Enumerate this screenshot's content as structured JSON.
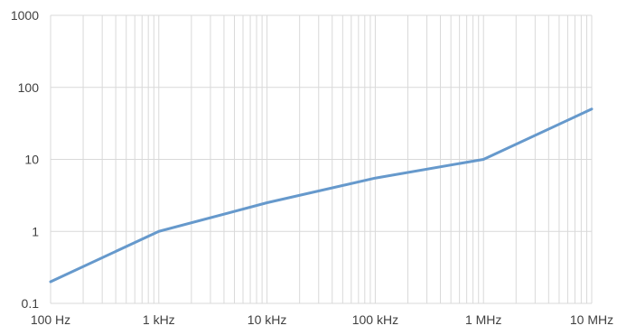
{
  "chart_data": {
    "type": "line",
    "title": "",
    "xlabel": "",
    "ylabel": "",
    "x_scale": "log",
    "y_scale": "log",
    "xlim": [
      100,
      10000000
    ],
    "ylim": [
      0.1,
      1000
    ],
    "grid": true,
    "legend": "none",
    "x_ticks": [
      {
        "value": 100,
        "label": "100 Hz"
      },
      {
        "value": 1000,
        "label": "1 kHz"
      },
      {
        "value": 10000,
        "label": "10 kHz"
      },
      {
        "value": 100000,
        "label": "100 kHz"
      },
      {
        "value": 1000000,
        "label": "1 MHz"
      },
      {
        "value": 10000000,
        "label": "10 MHz"
      }
    ],
    "y_ticks": [
      {
        "value": 0.1,
        "label": "0.1"
      },
      {
        "value": 1,
        "label": "1"
      },
      {
        "value": 10,
        "label": "10"
      },
      {
        "value": 100,
        "label": "100"
      },
      {
        "value": 1000,
        "label": "1000"
      }
    ],
    "series": [
      {
        "color": "#6699cc",
        "x": [
          100,
          1000,
          10000,
          100000,
          1000000,
          10000000
        ],
        "y": [
          0.2,
          1,
          2.5,
          5.5,
          10,
          50
        ]
      }
    ]
  },
  "colors": {
    "grid": "#d9d9d9",
    "tick_text": "#404040",
    "series": "#6699cc"
  }
}
